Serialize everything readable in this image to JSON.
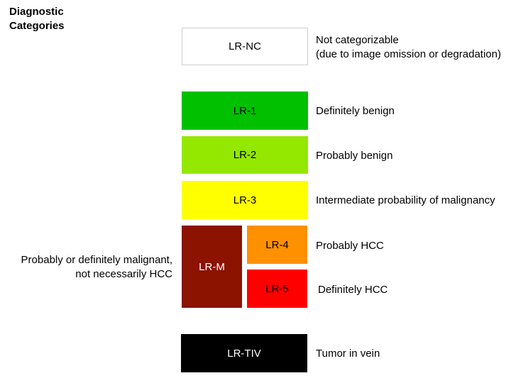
{
  "heading": {
    "line1": "Diagnostic",
    "line2": "Categories"
  },
  "side_note": {
    "line1": "Probably or definitely malignant,",
    "line2": "not necessarily HCC"
  },
  "categories": [
    {
      "key": "nc",
      "label": "LR-NC",
      "color": "#ffffff",
      "description": "Not categorizable",
      "description2": "(due to image omission or degradation)"
    },
    {
      "key": "1",
      "label": "LR-1",
      "color": "#00c000",
      "description": "Definitely benign"
    },
    {
      "key": "2",
      "label": "LR-2",
      "color": "#94e800",
      "description": "Probably benign"
    },
    {
      "key": "3",
      "label": "LR-3",
      "color": "#ffff00",
      "description": "Intermediate probability of malignancy"
    },
    {
      "key": "m",
      "label": "LR-M",
      "color": "#8b1300"
    },
    {
      "key": "4",
      "label": "LR-4",
      "color": "#ff9000",
      "description": "Probably HCC"
    },
    {
      "key": "5",
      "label": "LR-5",
      "color": "#ff0000",
      "description": "Definitely HCC"
    },
    {
      "key": "tiv",
      "label": "LR-TIV",
      "color": "#000000",
      "description": "Tumor in vein"
    }
  ]
}
